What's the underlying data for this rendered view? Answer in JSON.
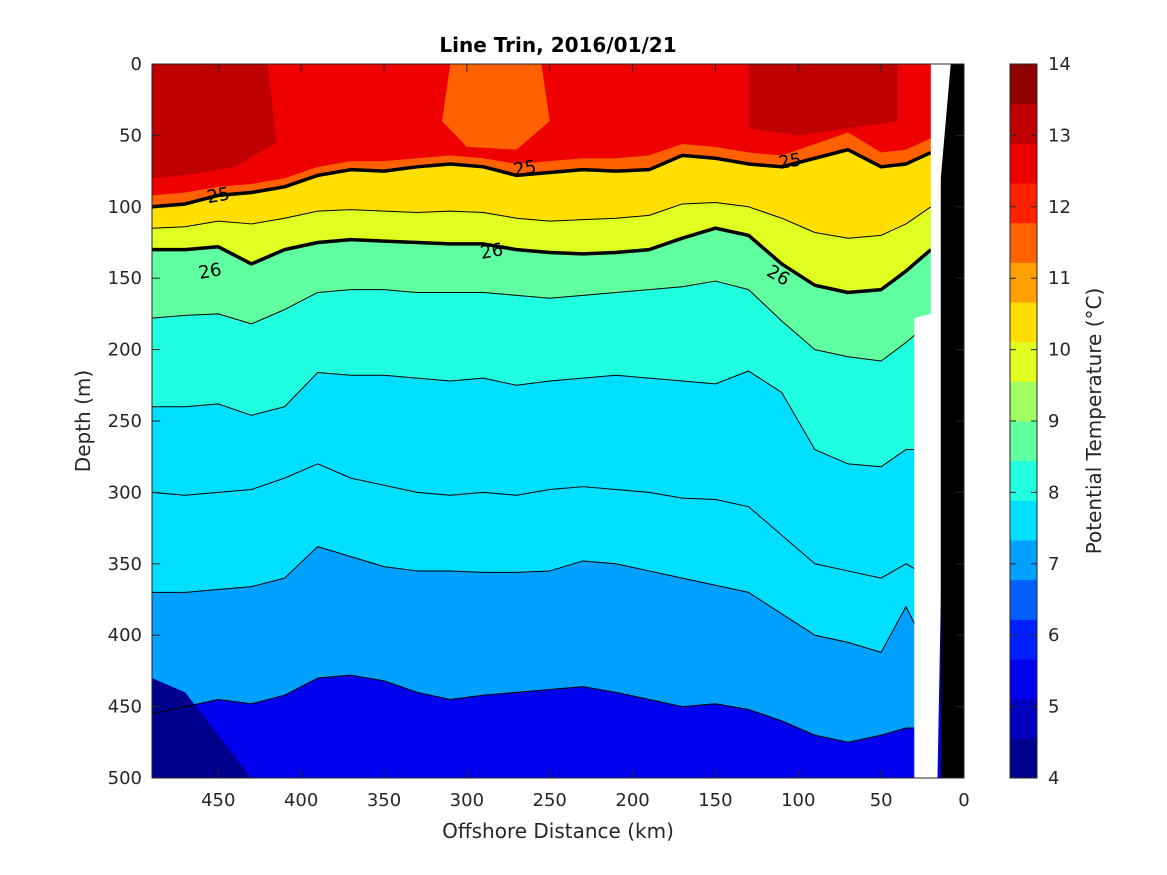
{
  "chart_data": {
    "type": "heatmap",
    "title": "Line Trin, 2016/01/21",
    "xlabel": "Offshore Distance (km)",
    "ylabel": "Depth (m)",
    "colorbar_label": "Potential Temperature (°C)",
    "xlim": [
      490,
      0
    ],
    "ylim": [
      500,
      0
    ],
    "xticks": [
      "450",
      "400",
      "350",
      "300",
      "250",
      "200",
      "150",
      "100",
      "50",
      "0"
    ],
    "yticks": [
      "0",
      "50",
      "100",
      "150",
      "200",
      "250",
      "300",
      "350",
      "400",
      "450",
      "500"
    ],
    "colorbar": {
      "range": [
        4,
        14
      ],
      "ticks": [
        "4",
        "5",
        "6",
        "7",
        "8",
        "9",
        "10",
        "11",
        "12",
        "13",
        "14"
      ],
      "colors": [
        "#00008f",
        "#0000bf",
        "#0000ef",
        "#0020ff",
        "#0060ff",
        "#00a0ff",
        "#00dfff",
        "#20ffdf",
        "#60ff9f",
        "#9fff60",
        "#dfff20",
        "#ffdf00",
        "#ffa000",
        "#ff6000",
        "#ff2000",
        "#ef0000",
        "#bf0000",
        "#8f0000"
      ]
    },
    "isotherm_depths": {
      "x": [
        490,
        470,
        450,
        430,
        410,
        390,
        370,
        350,
        330,
        310,
        290,
        270,
        250,
        230,
        210,
        190,
        170,
        150,
        130,
        110,
        90,
        70,
        50,
        35,
        20
      ],
      "levels": [
        {
          "value": 6.5,
          "depth": [
            455,
            450,
            445,
            448,
            442,
            430,
            428,
            432,
            440,
            445,
            442,
            440,
            438,
            436,
            440,
            445,
            450,
            448,
            452,
            460,
            470,
            475,
            470,
            465,
            465
          ]
        },
        {
          "value": 7.0,
          "depth": [
            370,
            370,
            368,
            366,
            360,
            338,
            345,
            352,
            355,
            355,
            356,
            356,
            355,
            348,
            350,
            355,
            360,
            365,
            370,
            385,
            400,
            405,
            412,
            380,
            415
          ]
        },
        {
          "value": 7.5,
          "depth": [
            300,
            302,
            300,
            298,
            290,
            280,
            290,
            295,
            300,
            302,
            300,
            302,
            298,
            296,
            298,
            300,
            304,
            305,
            310,
            330,
            350,
            355,
            360,
            350,
            360
          ]
        },
        {
          "value": 8.0,
          "depth": [
            240,
            240,
            238,
            246,
            240,
            216,
            218,
            218,
            220,
            222,
            220,
            225,
            222,
            220,
            218,
            220,
            222,
            224,
            215,
            230,
            270,
            280,
            282,
            270,
            270
          ]
        },
        {
          "value": 8.5,
          "depth": [
            178,
            176,
            175,
            182,
            172,
            160,
            158,
            158,
            160,
            160,
            160,
            162,
            164,
            162,
            160,
            158,
            156,
            152,
            158,
            180,
            200,
            205,
            208,
            195,
            180
          ]
        },
        {
          "value": 9.0,
          "depth": [
            130,
            130,
            128,
            140,
            130,
            125,
            123,
            124,
            125,
            126,
            126,
            130,
            132,
            133,
            132,
            130,
            122,
            115,
            120,
            140,
            155,
            160,
            158,
            145,
            130
          ]
        },
        {
          "value": 10.0,
          "depth": [
            115,
            114,
            110,
            112,
            108,
            103,
            102,
            103,
            104,
            103,
            104,
            108,
            110,
            109,
            108,
            106,
            98,
            97,
            100,
            108,
            118,
            122,
            120,
            112,
            100
          ]
        },
        {
          "value": 11.0,
          "depth": [
            100,
            98,
            92,
            90,
            86,
            78,
            74,
            75,
            72,
            70,
            72,
            78,
            76,
            74,
            75,
            74,
            64,
            66,
            70,
            72,
            66,
            60,
            72,
            70,
            62
          ]
        }
      ],
      "labeled": [
        {
          "text": "25",
          "x": 450,
          "depth": 92
        },
        {
          "text": "25",
          "x": 265,
          "depth": 73
        },
        {
          "text": "25",
          "x": 105,
          "depth": 68
        },
        {
          "text": "26",
          "x": 455,
          "depth": 145
        },
        {
          "text": "26",
          "x": 285,
          "depth": 131
        },
        {
          "text": "26",
          "x": 112,
          "depth": 148
        }
      ]
    }
  }
}
